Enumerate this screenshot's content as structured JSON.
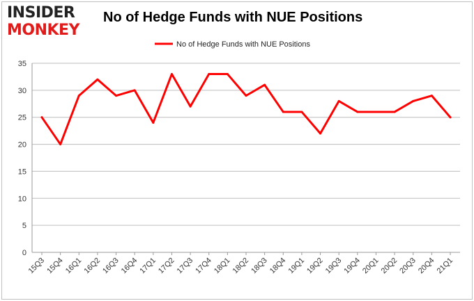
{
  "logo": {
    "line1": "INSIDER",
    "line2": "MONKEY"
  },
  "chart_data": {
    "type": "line",
    "title": "No of Hedge Funds with NUE Positions",
    "categories": [
      "15Q3",
      "15Q4",
      "16Q1",
      "16Q2",
      "16Q3",
      "16Q4",
      "17Q1",
      "17Q2",
      "17Q3",
      "17Q4",
      "18Q1",
      "18Q2",
      "18Q3",
      "18Q4",
      "19Q1",
      "19Q2",
      "19Q3",
      "19Q4",
      "20Q1",
      "20Q2",
      "20Q3",
      "20Q4",
      "21Q1"
    ],
    "series": [
      {
        "name": "No of Hedge Funds with NUE Positions",
        "values": [
          25,
          20,
          29,
          32,
          29,
          30,
          24,
          33,
          27,
          33,
          33,
          29,
          31,
          26,
          26,
          22,
          28,
          26,
          26,
          26,
          28,
          29,
          25
        ],
        "color": "#ff0000"
      }
    ],
    "ylim": [
      0,
      35
    ],
    "yticks": [
      0,
      5,
      10,
      15,
      20,
      25,
      30,
      35
    ],
    "grid": true,
    "legend": "top-center"
  }
}
